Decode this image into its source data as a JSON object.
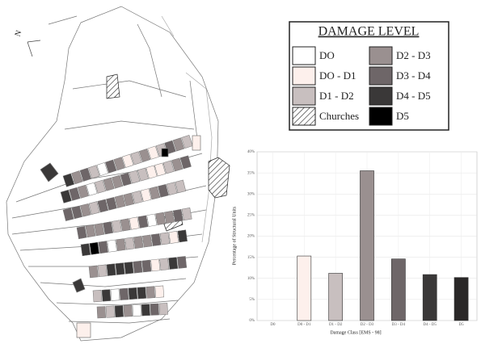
{
  "map_legend": {
    "title": "DAMAGE LEVEL",
    "items": [
      {
        "label": "DO",
        "color": "#ffffff"
      },
      {
        "label": "DO - D1",
        "color": "#fdf0ec"
      },
      {
        "label": "D1 - D2",
        "color": "#c8bfbf"
      },
      {
        "label": "Churches",
        "pattern": "hatch"
      },
      {
        "label": "D2 - D3",
        "color": "#9a9090"
      },
      {
        "label": "D3 - D4",
        "color": "#6e6668"
      },
      {
        "label": "D4 - D5",
        "color": "#3a3838"
      },
      {
        "label": "D5",
        "color": "#000000"
      }
    ]
  },
  "chart_data": {
    "type": "bar",
    "x_label": "Damage Class [EMS - 98]",
    "y_label": "Percentage of Structural Units",
    "categories": [
      "D0",
      "D0 - D1",
      "D1 - D2",
      "D2 - D3",
      "D3 - D4",
      "D4 - D5",
      "D5"
    ],
    "values": [
      0,
      15.3,
      11.2,
      35.5,
      14.6,
      10.9,
      10.2
    ],
    "colors": [
      "#ffffff",
      "#fdf0ec",
      "#c8bfbf",
      "#9a9090",
      "#6e6668",
      "#3a3838",
      "#2a2828"
    ],
    "ylim": [
      0,
      40
    ],
    "yticks": [
      {
        "value": 0,
        "label": "0%"
      },
      {
        "value": 5,
        "label": "5%"
      },
      {
        "value": 10,
        "label": "10%"
      },
      {
        "value": 15,
        "label": "15%"
      },
      {
        "value": 20,
        "label": "20%"
      },
      {
        "value": 25,
        "label": "25%"
      },
      {
        "value": 30,
        "label": "30%"
      },
      {
        "value": 35,
        "label": "35%"
      },
      {
        "value": 40,
        "label": "40%"
      }
    ],
    "grid": true
  }
}
